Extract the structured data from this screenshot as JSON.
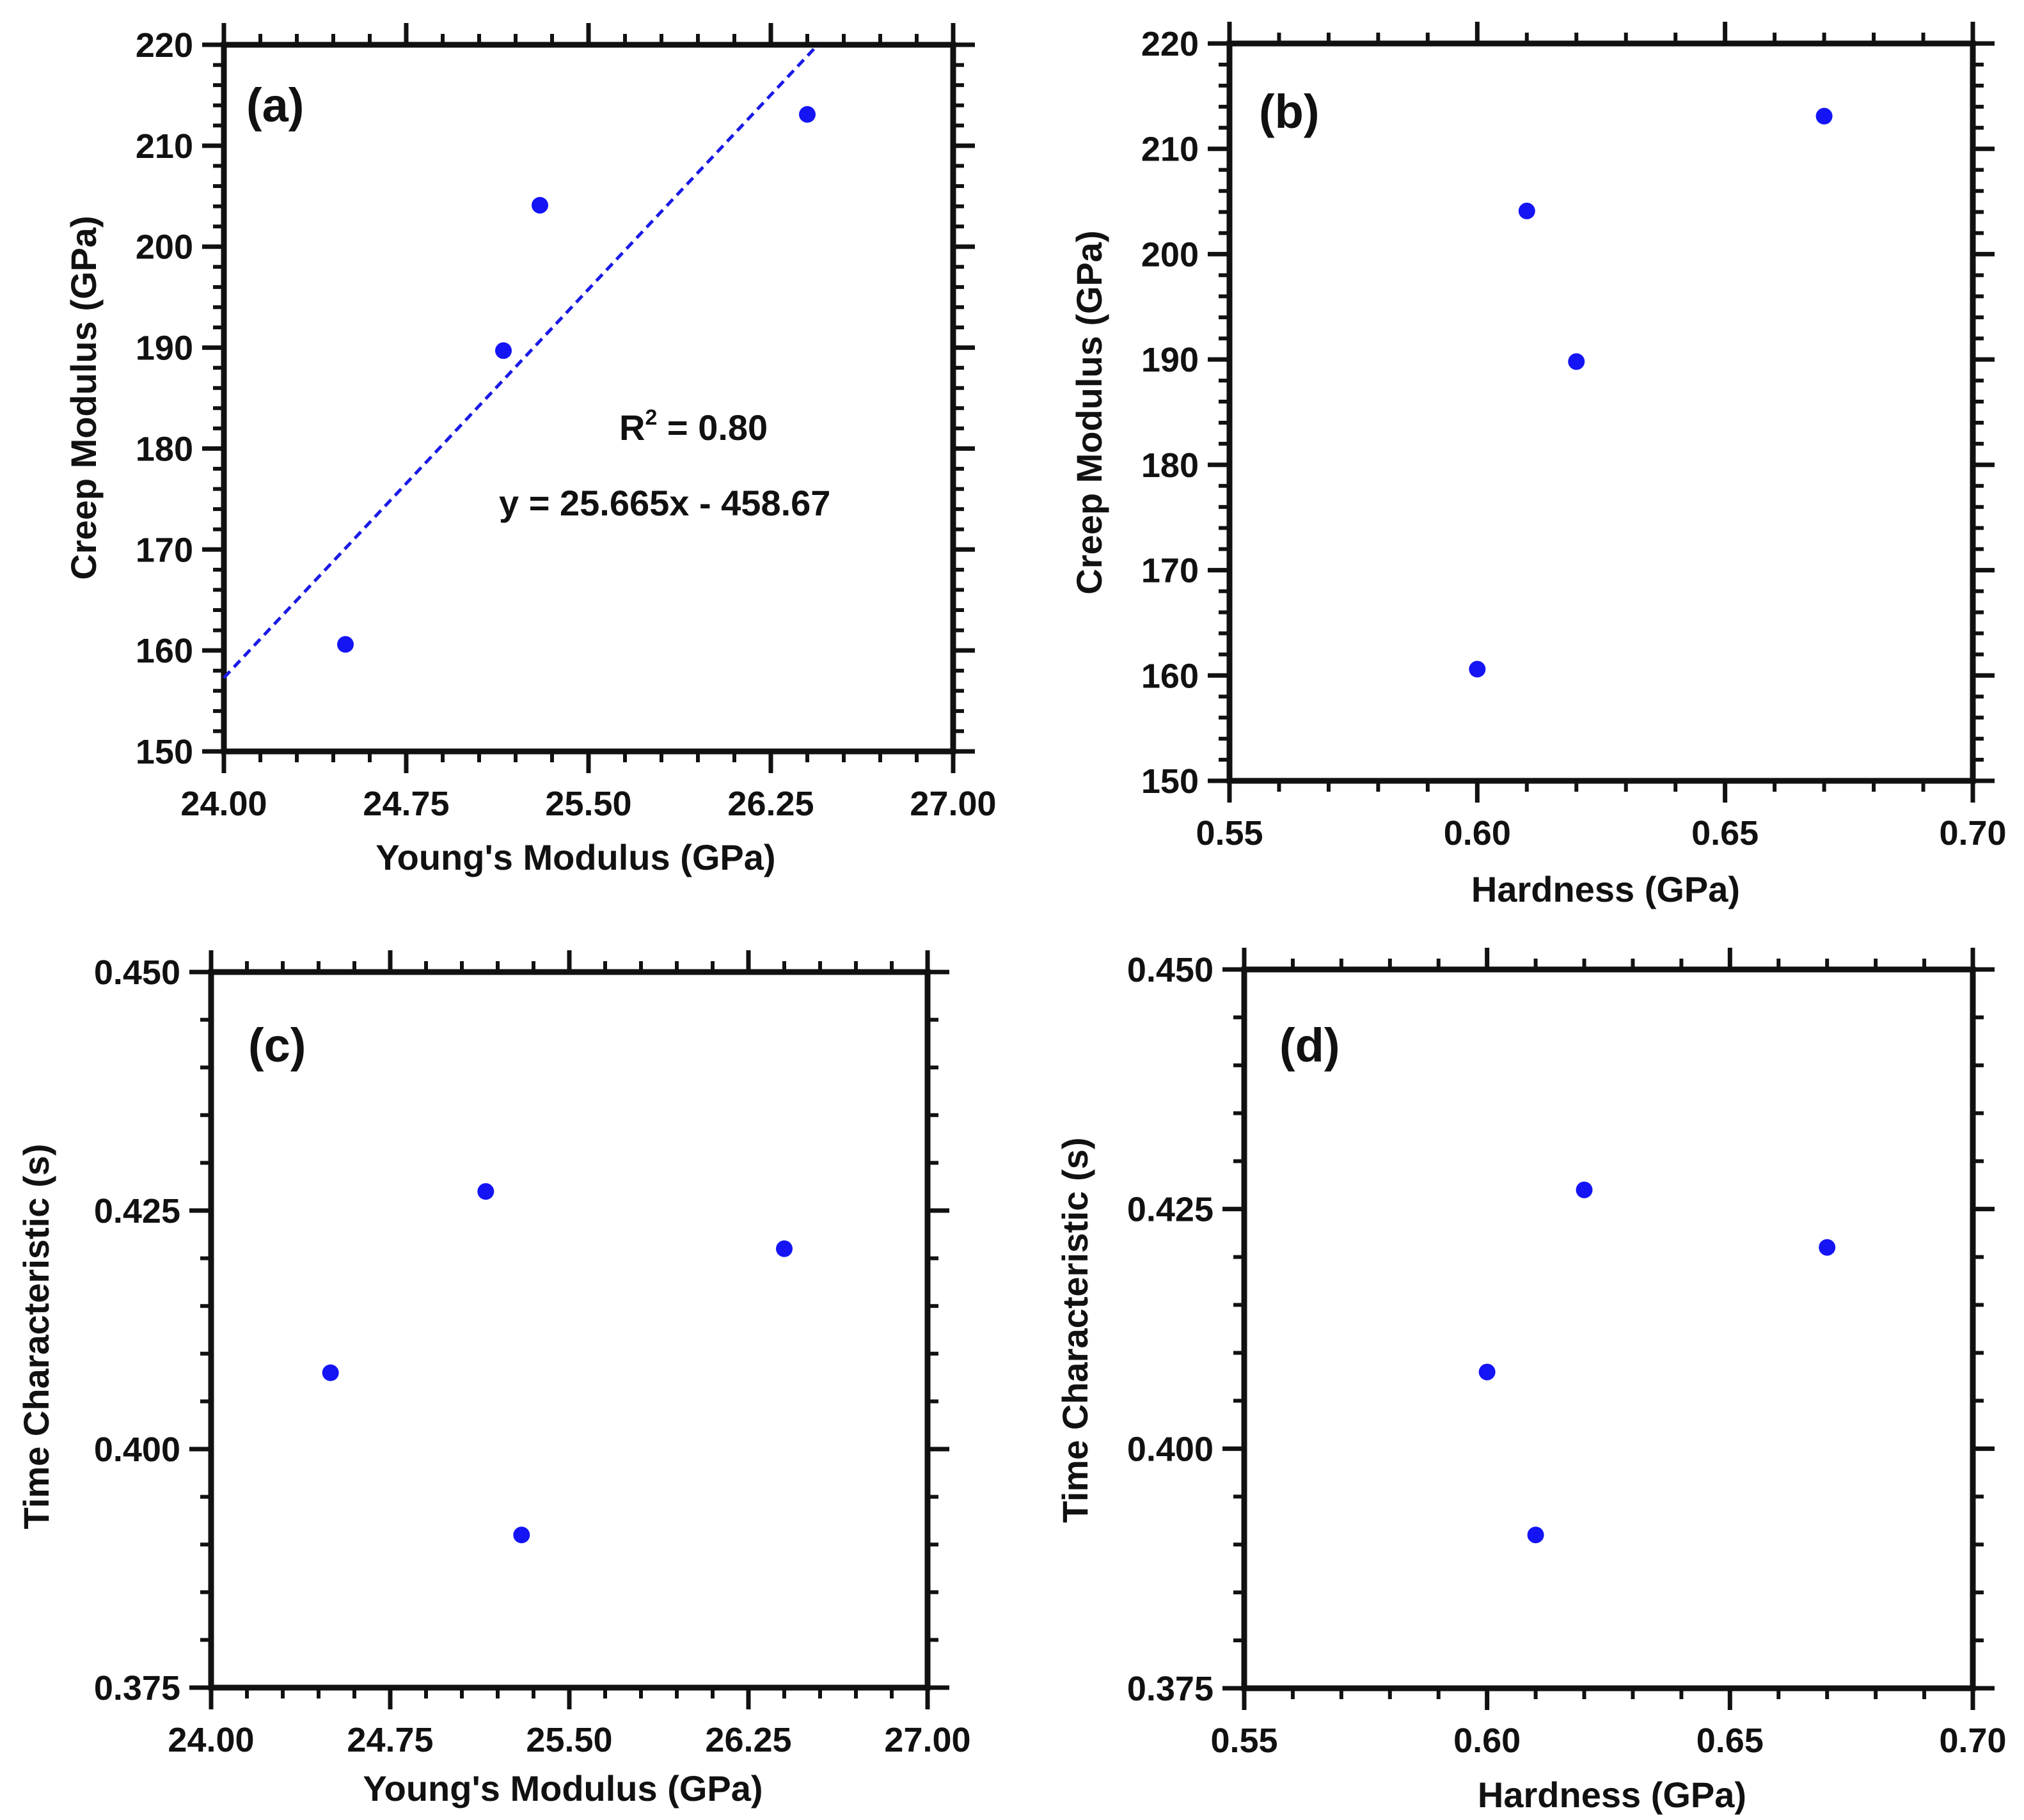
{
  "chart_data": [
    {
      "panel": "(a)",
      "type": "scatter",
      "xlabel": "Young's Modulus (GPa)",
      "ylabel": "Creep Modulus (GPa)",
      "xlim": [
        24.0,
        27.0
      ],
      "ylim": [
        150,
        220
      ],
      "xticks": [
        24.0,
        24.75,
        25.5,
        26.25,
        27.0
      ],
      "xtick_labels": [
        "24.00",
        "24.75",
        "25.50",
        "26.25",
        "27.00"
      ],
      "yticks": [
        150,
        160,
        170,
        180,
        190,
        200,
        210,
        220
      ],
      "ytick_labels": [
        "150",
        "160",
        "170",
        "180",
        "190",
        "200",
        "210",
        "220"
      ],
      "points": [
        {
          "x": 24.5,
          "y": 160.6
        },
        {
          "x": 25.15,
          "y": 189.7
        },
        {
          "x": 25.3,
          "y": 204.1
        },
        {
          "x": 26.4,
          "y": 213.1
        }
      ],
      "fit": {
        "slope": 25.665,
        "intercept": -458.67
      },
      "annotations": {
        "r2_base": "R",
        "r2_sup": "2",
        "r2_rest": " = 0.80",
        "equation": "y = 25.665x - 458.67"
      }
    },
    {
      "panel": "(b)",
      "type": "scatter",
      "xlabel": "Hardness (GPa)",
      "ylabel": "Creep Modulus (GPa)",
      "xlim": [
        0.55,
        0.7
      ],
      "ylim": [
        150,
        220
      ],
      "xticks": [
        0.55,
        0.6,
        0.65,
        0.7
      ],
      "xtick_labels": [
        "0.55",
        "0.60",
        "0.65",
        "0.70"
      ],
      "yticks": [
        150,
        160,
        170,
        180,
        190,
        200,
        210,
        220
      ],
      "ytick_labels": [
        "150",
        "160",
        "170",
        "180",
        "190",
        "200",
        "210",
        "220"
      ],
      "points": [
        {
          "x": 0.6,
          "y": 160.6
        },
        {
          "x": 0.62,
          "y": 189.8
        },
        {
          "x": 0.61,
          "y": 204.1
        },
        {
          "x": 0.67,
          "y": 213.1
        }
      ]
    },
    {
      "panel": "(c)",
      "type": "scatter",
      "xlabel": "Young's Modulus (GPa)",
      "ylabel": "Time Characteristic (s)",
      "xlim": [
        24.0,
        27.0
      ],
      "ylim": [
        0.375,
        0.45
      ],
      "xticks": [
        24.0,
        24.75,
        25.5,
        26.25,
        27.0
      ],
      "xtick_labels": [
        "24.00",
        "24.75",
        "25.50",
        "26.25",
        "27.00"
      ],
      "yticks": [
        0.375,
        0.4,
        0.425,
        0.45
      ],
      "ytick_labels": [
        "0.375",
        "0.400",
        "0.425",
        "0.450"
      ],
      "points": [
        {
          "x": 24.5,
          "y": 0.408
        },
        {
          "x": 25.15,
          "y": 0.427
        },
        {
          "x": 25.3,
          "y": 0.391
        },
        {
          "x": 26.4,
          "y": 0.421
        }
      ]
    },
    {
      "panel": "(d)",
      "type": "scatter",
      "xlabel": "Hardness (GPa)",
      "ylabel": "Time Characteristic (s)",
      "xlim": [
        0.55,
        0.7
      ],
      "ylim": [
        0.375,
        0.45
      ],
      "xticks": [
        0.55,
        0.6,
        0.65,
        0.7
      ],
      "xtick_labels": [
        "0.55",
        "0.60",
        "0.65",
        "0.70"
      ],
      "yticks": [
        0.375,
        0.4,
        0.425,
        0.45
      ],
      "ytick_labels": [
        "0.375",
        "0.400",
        "0.425",
        "0.450"
      ],
      "points": [
        {
          "x": 0.6,
          "y": 0.408
        },
        {
          "x": 0.62,
          "y": 0.427
        },
        {
          "x": 0.61,
          "y": 0.391
        },
        {
          "x": 0.67,
          "y": 0.421
        }
      ]
    }
  ],
  "colors": {
    "points": "#1414f5",
    "fit_line": "#1a1ae6",
    "axes": "#111111"
  }
}
